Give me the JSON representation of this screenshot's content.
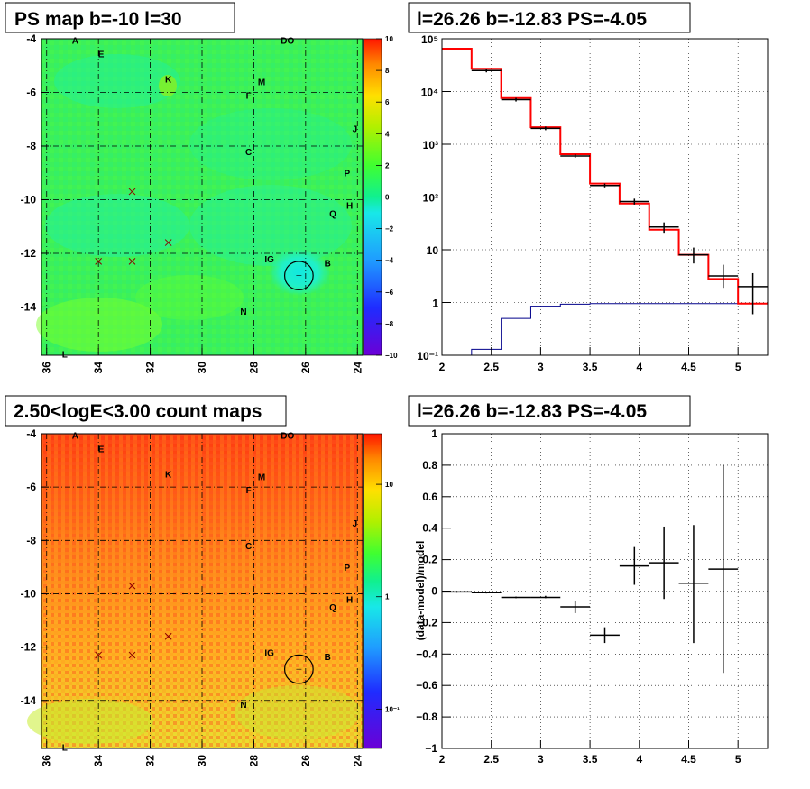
{
  "panels": {
    "top_left_title": "PS map b=-10 l=30",
    "top_right_title": "l=26.26 b=-12.83 PS=-4.05",
    "bottom_left_title": "2.50<logE<3.00 count maps",
    "bottom_right_title": "l=26.26 b=-12.83 PS=-4.05"
  },
  "colors": {
    "data": "#000000",
    "model": "#ff0000",
    "component": "#00008b",
    "grid": "#000000"
  },
  "chart_data": [
    {
      "type": "heatmap",
      "title": "PS map b=-10 l=30",
      "x_ticks": [
        "36",
        "34",
        "32",
        "30",
        "28",
        "26",
        "24"
      ],
      "y_ticks": [
        "-4",
        "-6",
        "-8",
        "-10",
        "-12",
        "-14"
      ],
      "xlim": [
        36.2,
        23.8
      ],
      "ylim": [
        -15.8,
        -4
      ],
      "colorbar_ticks": [
        "10",
        "8",
        "6",
        "4",
        "2",
        "0",
        "−2",
        "−4",
        "−6",
        "−8",
        "−10"
      ],
      "colorbar_range": [
        -10,
        10
      ],
      "sources": [
        {
          "label": "A",
          "l": 34.9,
          "b": -4.05
        },
        {
          "label": "E",
          "l": 33.9,
          "b": -4.55
        },
        {
          "label": "DO",
          "l": 26.7,
          "b": -4.05
        },
        {
          "label": "K",
          "l": 31.3,
          "b": -5.5
        },
        {
          "label": "M",
          "l": 27.7,
          "b": -5.6
        },
        {
          "label": "F",
          "l": 28.2,
          "b": -6.1
        },
        {
          "label": "J",
          "l": 24.1,
          "b": -7.35
        },
        {
          "label": "C",
          "l": 28.2,
          "b": -8.2
        },
        {
          "label": "P",
          "l": 24.4,
          "b": -9.0
        },
        {
          "label": "H",
          "l": 24.3,
          "b": -10.2
        },
        {
          "label": "Q",
          "l": 24.95,
          "b": -10.5
        },
        {
          "label": "IG",
          "l": 27.4,
          "b": -12.2
        },
        {
          "label": "B",
          "l": 25.15,
          "b": -12.35
        },
        {
          "label": "N",
          "l": 28.4,
          "b": -14.15
        },
        {
          "label": "L",
          "l": 35.3,
          "b": -15.75
        }
      ],
      "crosses": [
        {
          "l": 32.7,
          "b": -9.7
        },
        {
          "l": 31.3,
          "b": -11.6
        },
        {
          "l": 34.0,
          "b": -12.3
        },
        {
          "l": 32.7,
          "b": -12.3
        }
      ],
      "circle": {
        "l": 26.26,
        "b": -12.83,
        "r": 0.55
      }
    },
    {
      "type": "line",
      "title": "l=26.26 b=-12.83 PS=-4.05",
      "x_ticks": [
        "2",
        "2.5",
        "3",
        "3.5",
        "4",
        "4.5",
        "5"
      ],
      "y_ticks": [
        "10⁻¹",
        "1",
        "10",
        "10²",
        "10³",
        "10⁴",
        "10⁵"
      ],
      "xlim": [
        2,
        5.3
      ],
      "ylim": [
        0.1,
        100000
      ],
      "log_y": true,
      "grid": true,
      "bin_edges": [
        2.0,
        2.3,
        2.6,
        2.9,
        3.2,
        3.5,
        3.8,
        4.1,
        4.4,
        4.7,
        5.0,
        5.3
      ],
      "series": [
        {
          "values": [
            65000,
            27000,
            7500,
            2100,
            650,
            180,
            75,
            24,
            8,
            2.8,
            0.95
          ]
        },
        {
          "values": [
            0.1,
            0.13,
            0.5,
            0.85,
            0.93,
            0.95,
            0.95,
            0.95,
            0.95,
            0.95,
            0.95
          ]
        }
      ],
      "points": [
        {
          "x": 2.45,
          "y": 25000,
          "xerr": 0.15,
          "ylo": 25000,
          "yhi": 25000
        },
        {
          "x": 2.75,
          "y": 7000,
          "xerr": 0.15,
          "ylo": 7000,
          "yhi": 7000
        },
        {
          "x": 3.05,
          "y": 2000,
          "xerr": 0.15,
          "ylo": 2000,
          "yhi": 2000
        },
        {
          "x": 3.35,
          "y": 600,
          "xerr": 0.15,
          "ylo": 600,
          "yhi": 600
        },
        {
          "x": 3.65,
          "y": 165,
          "xerr": 0.15,
          "ylo": 155,
          "yhi": 180
        },
        {
          "x": 3.95,
          "y": 82,
          "xerr": 0.15,
          "ylo": 72,
          "yhi": 93
        },
        {
          "x": 4.25,
          "y": 27,
          "xerr": 0.15,
          "ylo": 21,
          "yhi": 33
        },
        {
          "x": 4.55,
          "y": 8,
          "xerr": 0.15,
          "ylo": 5.5,
          "yhi": 11
        },
        {
          "x": 4.85,
          "y": 3.2,
          "xerr": 0.15,
          "ylo": 1.9,
          "yhi": 5.2
        },
        {
          "x": 5.15,
          "y": 2.0,
          "xerr": 0.15,
          "ylo": 0.6,
          "yhi": 3.6
        }
      ]
    },
    {
      "type": "heatmap",
      "title": "2.50<logE<3.00 count maps",
      "x_ticks": [
        "36",
        "34",
        "32",
        "30",
        "28",
        "26",
        "24"
      ],
      "y_ticks": [
        "-4",
        "-6",
        "-8",
        "-10",
        "-12",
        "-14"
      ],
      "xlim": [
        36.2,
        23.8
      ],
      "ylim": [
        -15.8,
        -4
      ],
      "colorbar_ticks": [
        "10",
        "1",
        "10⁻¹"
      ],
      "colorbar_log": true
    },
    {
      "type": "scatter",
      "title": "l=26.26 b=-12.83 PS=-4.05",
      "ylabel": "(data-model)/model",
      "x_ticks": [
        "2",
        "2.5",
        "3",
        "3.5",
        "4",
        "4.5",
        "5"
      ],
      "y_ticks": [
        "1",
        "0.8",
        "0.6",
        "0.4",
        "0.2",
        "0",
        "−0.2",
        "−0.4",
        "−0.6",
        "−0.8",
        "−1"
      ],
      "xlim": [
        2,
        5.3
      ],
      "ylim": [
        -1,
        1
      ],
      "grid": true,
      "points": [
        {
          "x": 2.15,
          "y": -0.005,
          "xerr": 0.15,
          "ylo": -0.01,
          "yhi": 0.0
        },
        {
          "x": 2.45,
          "y": -0.01,
          "xerr": 0.15,
          "ylo": -0.015,
          "yhi": -0.005
        },
        {
          "x": 2.75,
          "y": -0.04,
          "xerr": 0.15,
          "ylo": -0.045,
          "yhi": -0.035
        },
        {
          "x": 3.05,
          "y": -0.04,
          "xerr": 0.15,
          "ylo": -0.045,
          "yhi": -0.03
        },
        {
          "x": 3.35,
          "y": -0.1,
          "xerr": 0.15,
          "ylo": -0.14,
          "yhi": -0.06
        },
        {
          "x": 3.65,
          "y": -0.28,
          "xerr": 0.15,
          "ylo": -0.33,
          "yhi": -0.23
        },
        {
          "x": 3.95,
          "y": 0.16,
          "xerr": 0.15,
          "ylo": 0.04,
          "yhi": 0.28
        },
        {
          "x": 4.25,
          "y": 0.18,
          "xerr": 0.15,
          "ylo": -0.05,
          "yhi": 0.41
        },
        {
          "x": 4.55,
          "y": 0.05,
          "xerr": 0.15,
          "ylo": -0.33,
          "yhi": 0.42
        },
        {
          "x": 4.85,
          "y": 0.14,
          "xerr": 0.15,
          "ylo": -0.52,
          "yhi": 0.8
        }
      ]
    }
  ]
}
